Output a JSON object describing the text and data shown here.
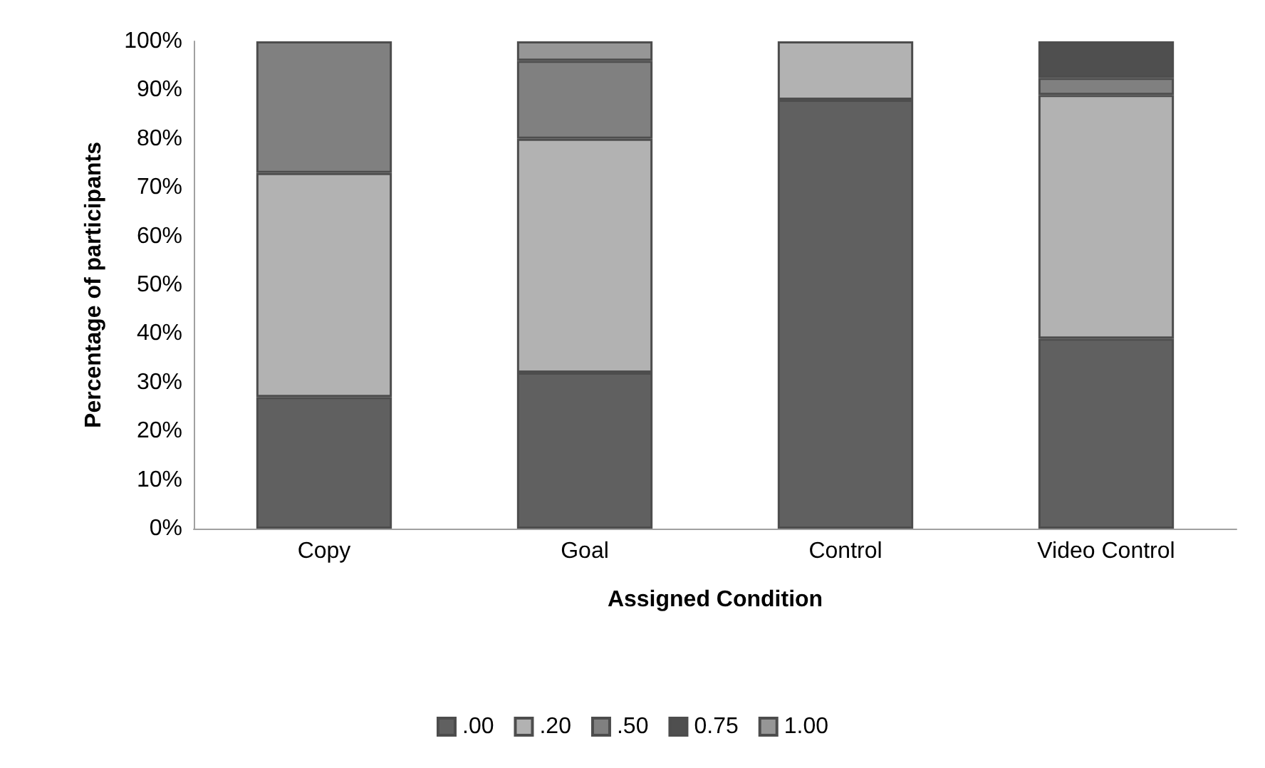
{
  "chart_data": {
    "type": "bar",
    "stacked": true,
    "xlabel": "Assigned Condition",
    "ylabel": "Percentage of participants",
    "categories": [
      "Copy",
      "Goal",
      "Control",
      "Video Control"
    ],
    "series": [
      {
        "name": ".00",
        "color": "#606060",
        "values": [
          27,
          32,
          88,
          39
        ]
      },
      {
        "name": ".20",
        "color": "#b2b2b2",
        "values": [
          46,
          48,
          12,
          50
        ]
      },
      {
        "name": ".50",
        "color": "#808080",
        "values": [
          27,
          16,
          0,
          3.5
        ]
      },
      {
        "name": "0.75",
        "color": "#4f4f4f",
        "values": [
          0,
          0,
          0,
          7.5
        ]
      },
      {
        "name": "1.00",
        "color": "#969696",
        "values": [
          0,
          4,
          0,
          0
        ]
      }
    ],
    "ylim": [
      0,
      100
    ],
    "yticks": [
      {
        "value": 0,
        "label": "0%"
      },
      {
        "value": 10,
        "label": "10%"
      },
      {
        "value": 20,
        "label": "20%"
      },
      {
        "value": 30,
        "label": "30%"
      },
      {
        "value": 40,
        "label": "40%"
      },
      {
        "value": 50,
        "label": "50%"
      },
      {
        "value": 60,
        "label": "60%"
      },
      {
        "value": 70,
        "label": "70%"
      },
      {
        "value": 80,
        "label": "80%"
      },
      {
        "value": 90,
        "label": "90%"
      },
      {
        "value": 100,
        "label": "100%"
      }
    ],
    "grid": false,
    "legend": "bottom"
  }
}
